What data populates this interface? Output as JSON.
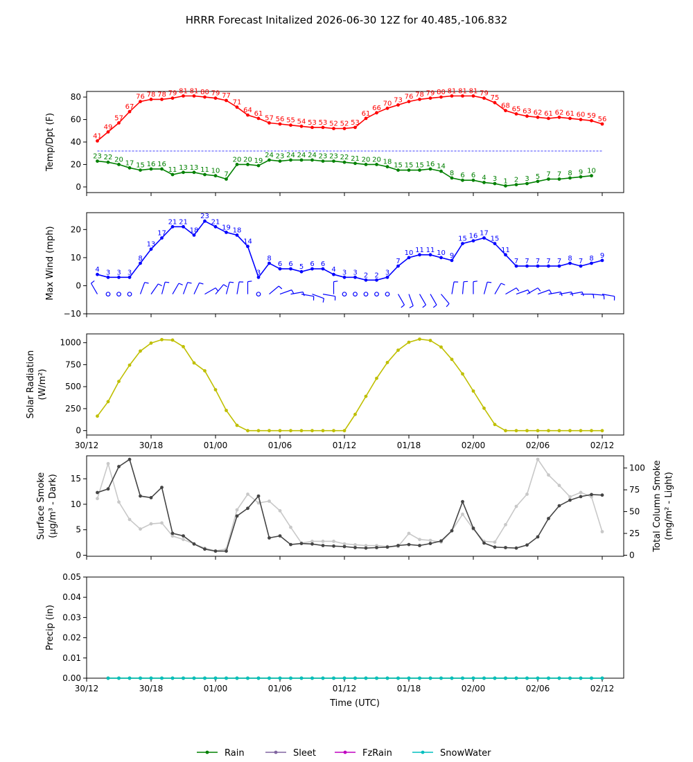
{
  "figure": {
    "title": "HRRR Forecast Initalized 2026-06-30 12Z for 40.485,-106.832",
    "xlabel": "Time (UTC)",
    "x_ticks": [
      "30/12",
      "30/18",
      "01/00",
      "01/06",
      "01/12",
      "01/18",
      "02/00",
      "02/06",
      "02/12"
    ],
    "legend": [
      {
        "label": "Rain",
        "color": "#008000"
      },
      {
        "label": "Sleet",
        "color": "#8064a0"
      },
      {
        "label": "FzRain",
        "color": "#c000c0"
      },
      {
        "label": "SnowWater",
        "color": "#00bfbf"
      }
    ]
  },
  "chart_data": [
    {
      "type": "line",
      "ylabel": "Temp/Dpt (F)",
      "ylim": [
        -5,
        85
      ],
      "yticks": [
        0,
        20,
        40,
        60,
        80
      ],
      "x_start_hour": 1,
      "freezing_line": 32,
      "series": [
        {
          "color": "#ff0000",
          "values": [
            41,
            49,
            57,
            67,
            76,
            78,
            78,
            79,
            81,
            81,
            80,
            79,
            77,
            71,
            64,
            61,
            57,
            56,
            55,
            54,
            53,
            53,
            52,
            52,
            53,
            61,
            66,
            70,
            73,
            76,
            78,
            79,
            80,
            81,
            81,
            81,
            79,
            75,
            68,
            65,
            63,
            62,
            61,
            62,
            61,
            60,
            59,
            56
          ]
        },
        {
          "color": "#008000",
          "values": [
            23,
            22,
            20,
            17,
            15,
            16,
            16,
            11,
            13,
            13,
            11,
            10,
            7,
            20,
            20,
            19,
            24,
            23,
            24,
            24,
            24,
            23,
            23,
            22,
            21,
            20,
            20,
            18,
            15,
            15,
            15,
            16,
            14,
            8,
            6,
            6,
            4,
            3,
            1,
            2,
            3,
            5,
            7,
            7,
            8,
            9,
            10
          ]
        }
      ]
    },
    {
      "type": "line",
      "ylabel": "Max Wind (mph)",
      "ylim": [
        -10,
        26
      ],
      "yticks": [
        -10,
        0,
        10,
        20
      ],
      "x_start_hour": 1,
      "series": [
        {
          "color": "#0000ff",
          "values": [
            4,
            3,
            3,
            3,
            8,
            13,
            17,
            21,
            21,
            18,
            23,
            21,
            19,
            18,
            14,
            3,
            8,
            6,
            6,
            5,
            6,
            6,
            4,
            3,
            3,
            2,
            2,
            3,
            7,
            10,
            11,
            11,
            10,
            9,
            15,
            16,
            17,
            15,
            11,
            7,
            7,
            7,
            7,
            7,
            8,
            7,
            8,
            9
          ]
        }
      ]
    },
    {
      "type": "line",
      "ylabel": "Solar Radiation (W/m²)",
      "ylim": [
        -50,
        1100
      ],
      "yticks": [
        0,
        250,
        500,
        750,
        1000
      ],
      "x_start_hour": 1,
      "series": [
        {
          "color": "#bfbf00",
          "values": [
            165,
            330,
            560,
            745,
            905,
            995,
            1035,
            1030,
            955,
            770,
            680,
            465,
            230,
            60,
            0,
            0,
            0,
            0,
            0,
            0,
            0,
            0,
            0,
            0,
            185,
            390,
            595,
            775,
            915,
            1005,
            1040,
            1025,
            950,
            810,
            645,
            450,
            255,
            70,
            0,
            0,
            0,
            0,
            0,
            0,
            0,
            0,
            0,
            0
          ]
        }
      ]
    },
    {
      "type": "line",
      "ylabel": "Surface Smoke (μg/m³ - Dark)",
      "ylabel_right": "Total Column Smoke (mg/m² - Light)",
      "ylim": [
        -0.2,
        19.5
      ],
      "yticks": [
        0,
        5,
        10,
        15
      ],
      "ylim_right": [
        -1.2,
        114
      ],
      "yticks_right": [
        0,
        25,
        50,
        75,
        100
      ],
      "x_start_hour": 1,
      "series": [
        {
          "color": "#444444",
          "axis": "left",
          "values": [
            12.3,
            13.0,
            17.4,
            18.8,
            11.6,
            11.3,
            13.3,
            4.3,
            3.8,
            2.2,
            1.2,
            0.8,
            0.8,
            7.7,
            9.2,
            11.6,
            3.4,
            3.8,
            2.1,
            2.3,
            2.2,
            1.9,
            1.8,
            1.7,
            1.5,
            1.4,
            1.5,
            1.6,
            1.9,
            2.1,
            1.9,
            2.3,
            2.8,
            4.8,
            10.5,
            5.3,
            2.4,
            1.6,
            1.5,
            1.4,
            2.0,
            3.6,
            7.2,
            9.7,
            10.8,
            11.5,
            11.9,
            11.8
          ]
        },
        {
          "color": "#c8c8c8",
          "axis": "right",
          "values": [
            65,
            105,
            61,
            41,
            30,
            36,
            37,
            22,
            18,
            13,
            8,
            5,
            7,
            52,
            70,
            60,
            62,
            51,
            32,
            14,
            16,
            16,
            16,
            13,
            12,
            11,
            11,
            10,
            10,
            25,
            18,
            17,
            15,
            28,
            47,
            30,
            16,
            15,
            35,
            56,
            70,
            110,
            92,
            80,
            67,
            72,
            67,
            27
          ]
        }
      ]
    },
    {
      "type": "line",
      "ylabel": "Precip (in)",
      "ylim": [
        0,
        0.05
      ],
      "yticks": [
        "0.00",
        "0.01",
        "0.02",
        "0.03",
        "0.04",
        "0.05"
      ],
      "x_start_hour": 2,
      "series": [
        {
          "name": "Rain",
          "color": "#008000",
          "values": [
            0,
            0,
            0,
            0,
            0,
            0,
            0,
            0,
            0,
            0,
            0,
            0,
            0,
            0,
            0,
            0,
            0,
            0,
            0,
            0,
            0,
            0,
            0,
            0,
            0,
            0,
            0,
            0,
            0,
            0,
            0,
            0,
            0,
            0,
            0,
            0,
            0,
            0,
            0,
            0,
            0,
            0,
            0,
            0,
            0,
            0,
            0
          ]
        },
        {
          "name": "SnowWater",
          "color": "#00bfbf",
          "values": [
            0,
            0,
            0,
            0,
            0,
            0,
            0,
            0,
            0,
            0,
            0,
            0,
            0,
            0,
            0,
            0,
            0,
            0,
            0,
            0,
            0,
            0,
            0,
            0,
            0,
            0,
            0,
            0,
            0,
            0,
            0,
            0,
            0,
            0,
            0,
            0,
            0,
            0,
            0,
            0,
            0,
            0,
            0,
            0,
            0,
            0,
            0
          ]
        }
      ]
    }
  ]
}
